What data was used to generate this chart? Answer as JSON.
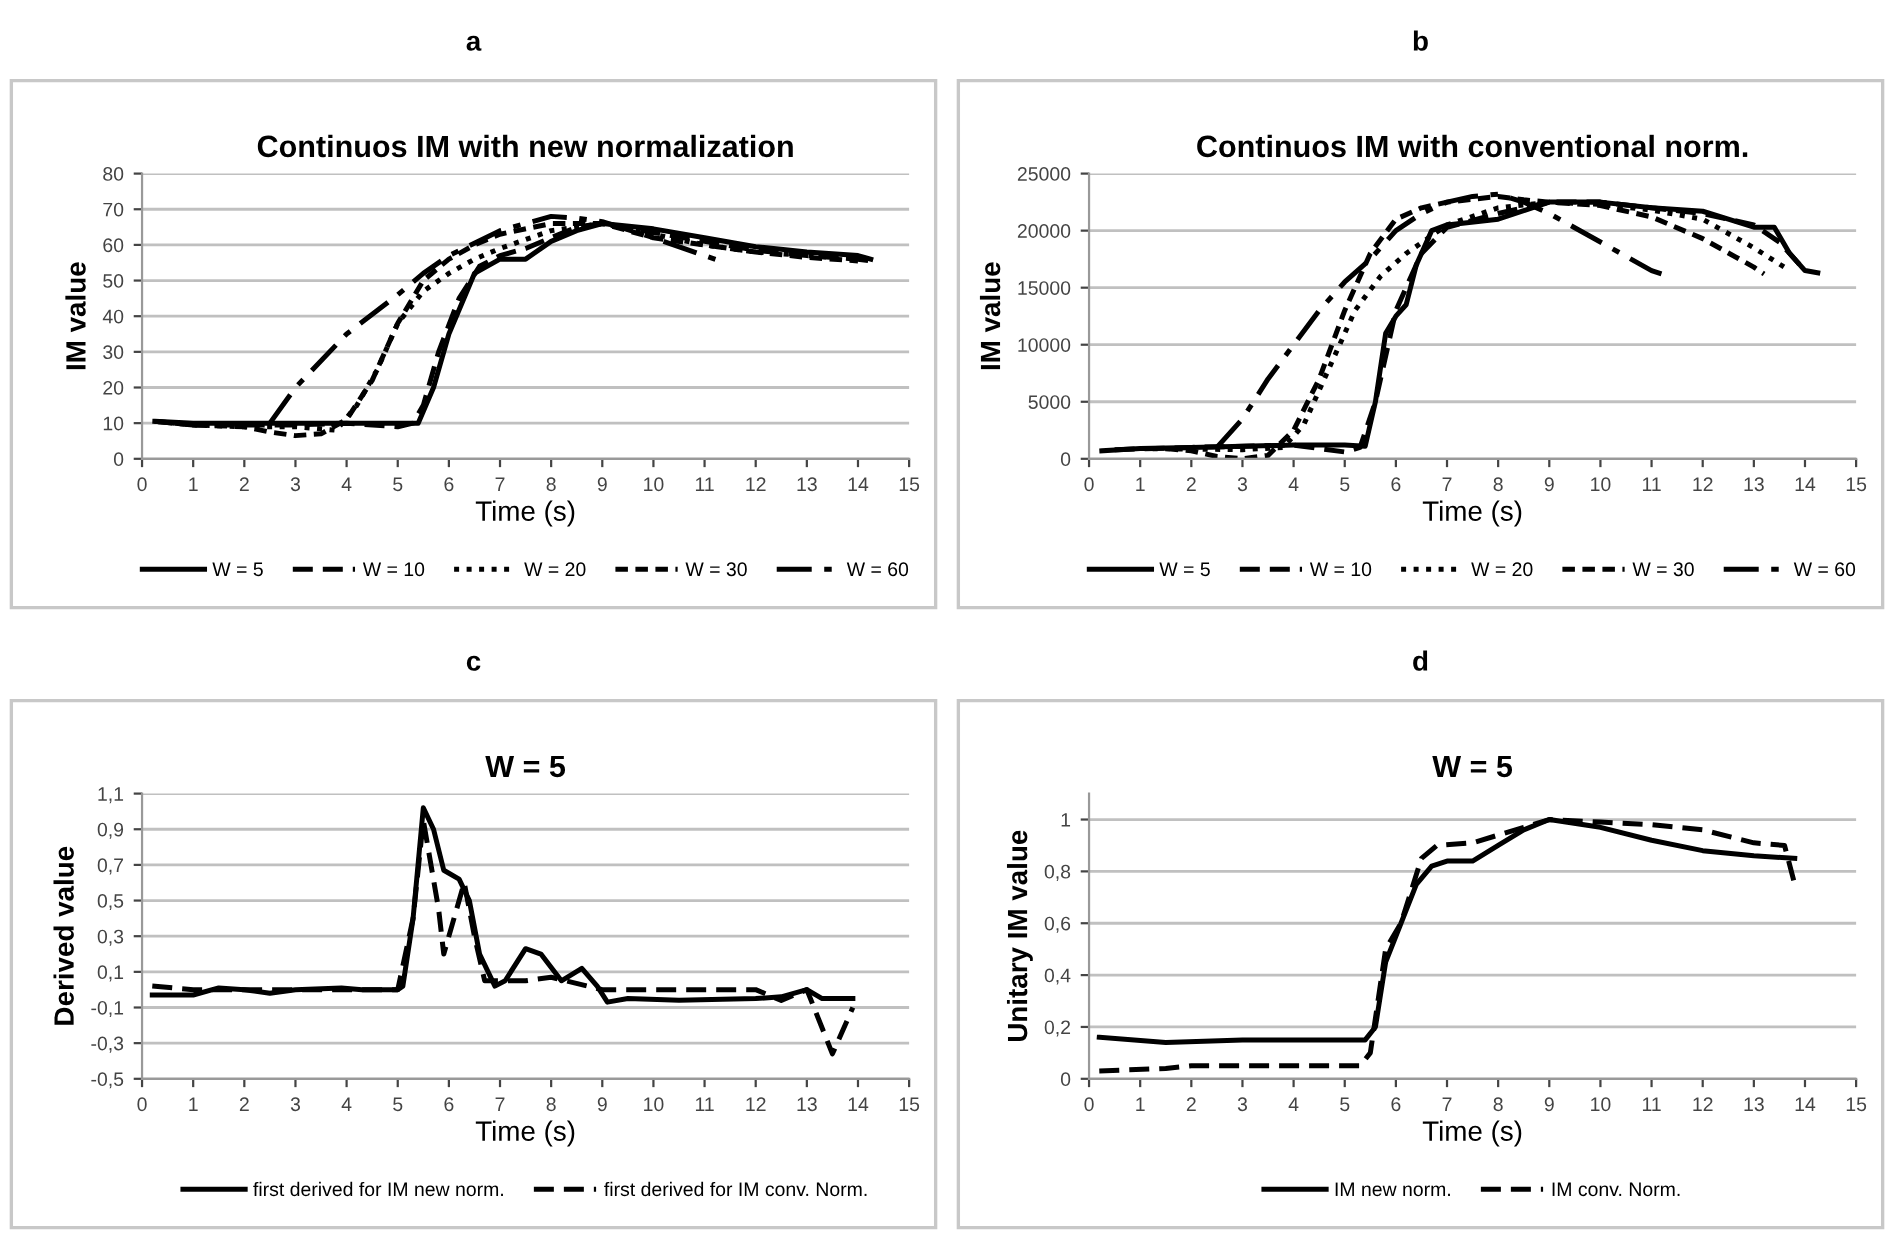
{
  "chart_data": [
    {
      "type": "line",
      "annotations": [
        "a"
      ],
      "title": "Continuos IM with new normalization",
      "xlabel": "Time (s)",
      "ylabel": "IM value",
      "xlim": [
        0,
        15
      ],
      "xticks": [
        0,
        1,
        2,
        3,
        4,
        5,
        6,
        7,
        8,
        9,
        10,
        11,
        12,
        13,
        14,
        15
      ],
      "ylim": [
        0,
        80
      ],
      "yticks": [
        0,
        10,
        20,
        30,
        40,
        50,
        60,
        70,
        80
      ],
      "grid": "y",
      "legend": "bottom",
      "series": [
        {
          "name": "W = 5",
          "color": "#000000",
          "line_style": "solid",
          "x": [
            0.25,
            1,
            2,
            3,
            4,
            5,
            5.4,
            5.7,
            6,
            6.5,
            7,
            7.5,
            8,
            8.5,
            9,
            10,
            11,
            12,
            13,
            14,
            14.25
          ],
          "values": [
            10.5,
            10,
            10,
            10,
            10,
            10,
            10,
            20,
            35,
            52,
            56,
            56,
            61,
            64,
            66,
            64.5,
            62,
            59.5,
            58,
            57,
            56
          ]
        },
        {
          "name": "W = 10",
          "color": "#000000",
          "line_style": "dashed",
          "x": [
            0.25,
            1,
            2,
            3,
            4,
            5,
            5.3,
            5.5,
            5.8,
            6.2,
            6.6,
            7,
            7.5,
            8,
            8.5,
            9,
            10,
            11,
            12,
            13,
            14,
            14.25
          ],
          "values": [
            10.5,
            9.5,
            9.5,
            9.5,
            10,
            9,
            10,
            15,
            30,
            45,
            54,
            57,
            59,
            62,
            65,
            66,
            63.5,
            61,
            58.5,
            57,
            56,
            55.5
          ]
        },
        {
          "name": "W = 20",
          "color": "#000000",
          "line_style": "dotted",
          "x": [
            0.25,
            1,
            2,
            3,
            3.8,
            4.2,
            4.6,
            5,
            5.5,
            6,
            6.5,
            7,
            8,
            9,
            10,
            11,
            12,
            13,
            14
          ],
          "values": [
            10.5,
            9.5,
            9,
            9,
            8,
            15,
            25,
            38,
            47,
            52,
            56,
            59,
            64,
            66,
            63,
            60,
            58,
            57,
            56
          ]
        },
        {
          "name": "W = 30",
          "color": "#000000",
          "line_style": "densely dashed",
          "x": [
            0.25,
            1,
            2,
            2.5,
            3,
            3.5,
            4,
            4.5,
            5,
            5.5,
            6,
            6.5,
            7,
            8,
            9,
            10,
            11,
            12,
            13,
            14
          ],
          "values": [
            10.5,
            9.5,
            9,
            7.5,
            6.5,
            7,
            11,
            22,
            38,
            50,
            56,
            60,
            63,
            66,
            66,
            62,
            60,
            58,
            56.5,
            55.5
          ]
        },
        {
          "name": "W = 60",
          "color": "#000000",
          "line_style": "dashdot",
          "x": [
            2.5,
            3,
            4,
            5,
            5.5,
            6,
            7,
            7.5,
            8,
            8.5,
            9,
            10,
            11,
            11.3
          ],
          "values": [
            10,
            20,
            35,
            46,
            52,
            57,
            64,
            66,
            68,
            67.5,
            66.5,
            62,
            57,
            55.5
          ]
        }
      ]
    },
    {
      "type": "line",
      "annotations": [
        "b"
      ],
      "title": "Continuos IM with conventional norm.",
      "xlabel": "Time (s)",
      "ylabel": "IM value",
      "xlim": [
        0,
        15
      ],
      "xticks": [
        0,
        1,
        2,
        3,
        4,
        5,
        6,
        7,
        8,
        9,
        10,
        11,
        12,
        13,
        14,
        15
      ],
      "ylim": [
        0,
        25000
      ],
      "yticks": [
        0,
        5000,
        10000,
        15000,
        20000,
        25000
      ],
      "grid": "y",
      "legend": "bottom",
      "series": [
        {
          "name": "W = 5",
          "color": "#000000",
          "line_style": "solid",
          "x": [
            0.25,
            1,
            2,
            3,
            4,
            5,
            5.4,
            5.6,
            5.8,
            6,
            6.2,
            6.4,
            6.7,
            7,
            8,
            9,
            10,
            11,
            12,
            12.5,
            13,
            13.4,
            13.7,
            14,
            14.25
          ],
          "values": [
            700,
            900,
            1000,
            1100,
            1200,
            1200,
            1100,
            5000,
            11000,
            12500,
            13500,
            17000,
            20000,
            20500,
            21000,
            22500,
            22500,
            22000,
            21700,
            21000,
            20300,
            20300,
            18000,
            16500,
            16300
          ]
        },
        {
          "name": "W = 10",
          "color": "#000000",
          "line_style": "dashed",
          "x": [
            0.5,
            2,
            4,
            5,
            5.3,
            5.6,
            6,
            6.5,
            7,
            8,
            9,
            10,
            11,
            12,
            13,
            13.5,
            14
          ],
          "values": [
            800,
            1000,
            1200,
            600,
            1000,
            5000,
            13000,
            18000,
            20300,
            21500,
            22500,
            22500,
            22000,
            21500,
            20500,
            19000,
            16500
          ]
        },
        {
          "name": "W = 20",
          "color": "#000000",
          "line_style": "dotted",
          "x": [
            1,
            3,
            3.8,
            4.2,
            4.7,
            5.2,
            5.7,
            6.2,
            7,
            8,
            9,
            10,
            11,
            12,
            13,
            13.7
          ],
          "values": [
            900,
            800,
            1000,
            3000,
            8000,
            13000,
            16000,
            18000,
            20500,
            22000,
            22500,
            22300,
            21800,
            21000,
            18500,
            16500
          ]
        },
        {
          "name": "W = 30",
          "color": "#000000",
          "line_style": "densely dashed",
          "x": [
            1.5,
            2,
            2.5,
            3,
            3.5,
            4,
            4.5,
            5,
            5.5,
            6,
            6.5,
            7,
            8,
            8.5,
            9,
            10,
            11,
            12,
            13,
            13.2
          ],
          "values": [
            900,
            700,
            200,
            0,
            300,
            2500,
            7000,
            13000,
            18000,
            21000,
            22000,
            22500,
            23000,
            22700,
            22500,
            22200,
            21200,
            19300,
            16800,
            16200
          ]
        },
        {
          "name": "W = 60",
          "color": "#000000",
          "line_style": "dashdot",
          "x": [
            2.5,
            3,
            3.5,
            4,
            4.5,
            5,
            5.5,
            6,
            6.5,
            7,
            7.5,
            8,
            8.5,
            9,
            10,
            11,
            11.2
          ],
          "values": [
            1000,
            3500,
            7000,
            10000,
            13000,
            15500,
            17500,
            20000,
            21500,
            22500,
            23000,
            23200,
            22500,
            21500,
            19000,
            16500,
            16200
          ]
        }
      ]
    },
    {
      "type": "line",
      "annotations": [
        "c"
      ],
      "title": "W = 5",
      "xlabel": "Time (s)",
      "ylabel": "Derived value",
      "xlim": [
        0,
        15
      ],
      "xticks": [
        0,
        1,
        2,
        3,
        4,
        5,
        6,
        7,
        8,
        9,
        10,
        11,
        12,
        13,
        14,
        15
      ],
      "ylim": [
        -0.5,
        1.1
      ],
      "yticks": [
        {
          "value": -0.5,
          "label": "-0,5"
        },
        {
          "value": -0.3,
          "label": "-0,3"
        },
        {
          "value": -0.1,
          "label": "-0,1"
        },
        {
          "value": 0.1,
          "label": "0,1"
        },
        {
          "value": 0.3,
          "label": "0,3"
        },
        {
          "value": 0.5,
          "label": "0,5"
        },
        {
          "value": 0.7,
          "label": "0,7"
        },
        {
          "value": 0.9,
          "label": "0,9"
        },
        {
          "value": 1.1,
          "label": "1,1"
        }
      ],
      "grid": "y",
      "legend": "bottom",
      "series": [
        {
          "name": "first derived for IM new norm.",
          "color": "#000000",
          "line_style": "solid",
          "x": [
            0.2,
            1,
            1.5,
            2,
            2.5,
            3,
            3.9,
            4.3,
            5,
            5.1,
            5.3,
            5.5,
            5.7,
            5.9,
            6.2,
            6.4,
            6.6,
            6.9,
            7.1,
            7.5,
            7.8,
            8.2,
            8.6,
            8.9,
            9.1,
            9.5,
            10.5,
            12,
            12.5,
            13,
            13.3,
            13.9
          ],
          "values": [
            -0.03,
            -0.03,
            0.01,
            0.0,
            -0.02,
            0.0,
            0.01,
            0.0,
            0.0,
            0.02,
            0.4,
            1.02,
            0.9,
            0.67,
            0.62,
            0.5,
            0.2,
            0.02,
            0.05,
            0.23,
            0.2,
            0.05,
            0.12,
            0.02,
            -0.07,
            -0.05,
            -0.06,
            -0.05,
            -0.04,
            0.0,
            -0.05,
            -0.05
          ]
        },
        {
          "name": "first derived for IM conv. Norm.",
          "color": "#000000",
          "line_style": "dashed",
          "x": [
            0.2,
            1,
            2,
            3,
            4,
            5,
            5.3,
            5.5,
            5.8,
            5.9,
            6.1,
            6.3,
            6.5,
            6.7,
            7.5,
            8,
            9,
            12,
            12.5,
            13,
            13.5,
            13.9
          ],
          "values": [
            0.02,
            0.0,
            0.0,
            0.0,
            0.0,
            0.0,
            0.4,
            0.95,
            0.45,
            0.2,
            0.4,
            0.6,
            0.3,
            0.05,
            0.05,
            0.07,
            0.0,
            0.0,
            -0.06,
            0.0,
            -0.36,
            -0.1
          ]
        }
      ]
    },
    {
      "type": "line",
      "annotations": [
        "d"
      ],
      "title": "W = 5",
      "xlabel": "Time (s)",
      "ylabel": "Unitary IM value",
      "xlim": [
        0,
        15
      ],
      "xticks": [
        0,
        1,
        2,
        3,
        4,
        5,
        6,
        7,
        8,
        9,
        10,
        11,
        12,
        13,
        14,
        15
      ],
      "ylim": [
        0,
        1.1
      ],
      "yticks": [
        0,
        {
          "value": 0.2,
          "label": "0,2"
        },
        {
          "value": 0.4,
          "label": "0,4"
        },
        {
          "value": 0.6,
          "label": "0,6"
        },
        {
          "value": 0.8,
          "label": "0,8"
        },
        1
      ],
      "grid": "y",
      "legend": "bottom",
      "series": [
        {
          "name": "IM new norm.",
          "color": "#000000",
          "line_style": "solid",
          "x": [
            0.2,
            1.5,
            3,
            5.4,
            5.6,
            5.8,
            6.1,
            6.4,
            6.7,
            7,
            7.5,
            8,
            8.5,
            9,
            10,
            11,
            12,
            13,
            13.8
          ],
          "values": [
            0.16,
            0.14,
            0.15,
            0.15,
            0.2,
            0.45,
            0.6,
            0.75,
            0.82,
            0.84,
            0.84,
            0.9,
            0.96,
            1.0,
            0.97,
            0.92,
            0.88,
            0.86,
            0.85
          ]
        },
        {
          "name": "IM conv. Norm.",
          "color": "#000000",
          "line_style": "dashed",
          "x": [
            0.2,
            1.5,
            2,
            5.3,
            5.5,
            5.8,
            6.1,
            6.5,
            6.8,
            7.5,
            8,
            8.5,
            9,
            10,
            11,
            12,
            13,
            13.6,
            13.8
          ],
          "values": [
            0.03,
            0.04,
            0.05,
            0.05,
            0.1,
            0.5,
            0.6,
            0.85,
            0.9,
            0.91,
            0.94,
            0.97,
            1.0,
            0.99,
            0.98,
            0.96,
            0.91,
            0.9,
            0.75
          ]
        }
      ]
    }
  ]
}
